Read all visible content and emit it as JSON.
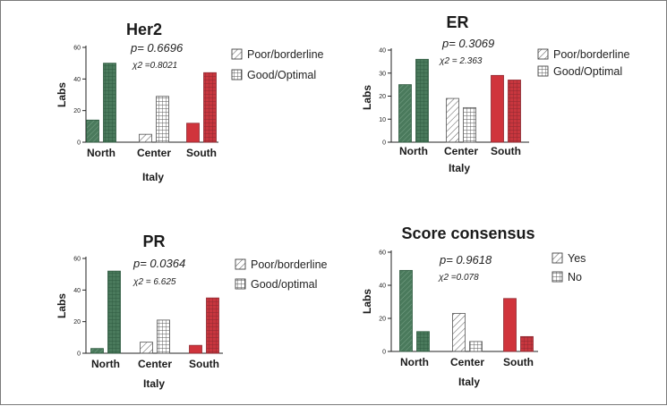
{
  "colors": {
    "north": "#4a7a5c",
    "center": "#ffffff",
    "south": "#d0343c",
    "axis": "#222222"
  },
  "chart_data": [
    {
      "type": "bar",
      "title": "Her2",
      "pvalue": "p= 0.6696",
      "chi2": "χ2 =0.8021",
      "xlabel": "Italy",
      "ylabel": "Labs",
      "ylim": [
        0,
        60
      ],
      "yticks": [
        "0",
        "20",
        "40",
        "60"
      ],
      "categories": [
        "North",
        "Center",
        "South"
      ],
      "series": [
        {
          "name": "Poor/borderline",
          "values": [
            14,
            5,
            12
          ]
        },
        {
          "name": "Good/Optimal",
          "values": [
            50,
            29,
            44
          ]
        }
      ],
      "legend": [
        "Poor/borderline",
        "Good/Optimal"
      ]
    },
    {
      "type": "bar",
      "title": "ER",
      "pvalue": "p= 0.3069",
      "chi2": "χ2 = 2.363",
      "xlabel": "Italy",
      "ylabel": "Labs",
      "ylim": [
        0,
        40
      ],
      "yticks": [
        "0",
        "10",
        "20",
        "30",
        "40"
      ],
      "categories": [
        "North",
        "Center",
        "South"
      ],
      "series": [
        {
          "name": "Poor/borderline",
          "values": [
            25,
            19,
            29
          ]
        },
        {
          "name": "Good/Optimal",
          "values": [
            36,
            15,
            27
          ]
        }
      ],
      "legend": [
        "Poor/borderline",
        "Good/Optimal"
      ]
    },
    {
      "type": "bar",
      "title": "PR",
      "pvalue": "p= 0.0364",
      "chi2": "χ2 = 6.625",
      "xlabel": "Italy",
      "ylabel": "Labs",
      "ylim": [
        0,
        60
      ],
      "yticks": [
        "0",
        "20",
        "40",
        "60"
      ],
      "categories": [
        "North",
        "Center",
        "South"
      ],
      "series": [
        {
          "name": "Poor/borderline",
          "values": [
            3,
            7,
            5
          ]
        },
        {
          "name": "Good/optimal",
          "values": [
            52,
            21,
            35
          ]
        }
      ],
      "legend": [
        "Poor/borderline",
        "Good/optimal"
      ]
    },
    {
      "type": "bar",
      "title": "Score consensus",
      "pvalue": "p= 0.9618",
      "chi2": "χ2 =0.078",
      "xlabel": "Italy",
      "ylabel": "Labs",
      "ylim": [
        0,
        60
      ],
      "yticks": [
        "0",
        "20",
        "40",
        "60"
      ],
      "categories": [
        "North",
        "Center",
        "South"
      ],
      "series": [
        {
          "name": "Yes",
          "values": [
            49,
            23,
            32
          ]
        },
        {
          "name": "No",
          "values": [
            12,
            6,
            9
          ]
        }
      ],
      "legend": [
        "Yes",
        "No"
      ]
    }
  ]
}
